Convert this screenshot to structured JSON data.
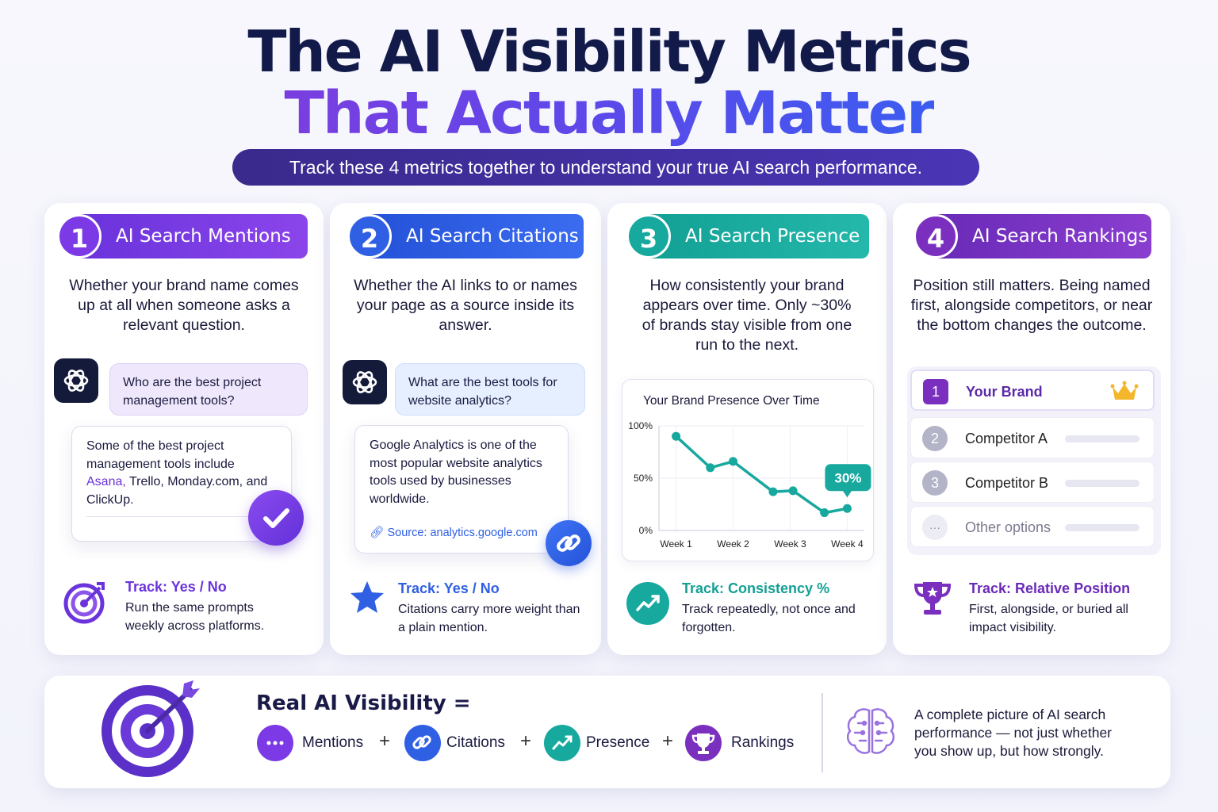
{
  "header": {
    "title_line1": "The AI Visibility Metrics",
    "title_line2": "That Actually Matter",
    "subtitle": "Track these 4 metrics together to understand your true AI search performance."
  },
  "cards": [
    {
      "number": "1",
      "label": "AI Search Mentions",
      "description": "Whether your brand name comes up at all when someone asks a relevant question.",
      "question": "Who are the best project management tools?",
      "answer_prefix": "Some of the best project management tools include ",
      "answer_highlight": "Asana,",
      "answer_rest": " Trello, Monday.com, and ClickUp.",
      "track_title": "Track: Yes / No",
      "track_desc": "Run the same prompts weekly across platforms.",
      "color": "#7c3ae6"
    },
    {
      "number": "2",
      "label": "AI Search Citations",
      "description": "Whether the AI links to or names your page as a source inside its answer.",
      "question": "What are the best tools for website analytics?",
      "answer": "Google Analytics is one of the most popular website analytics tools used by businesses worldwide.",
      "source_label": "Source:",
      "source_url": "analytics.google.com",
      "track_title": "Track: Yes / No",
      "track_desc": "Citations carry more weight than a plain mention.",
      "color": "#2f5fe3"
    },
    {
      "number": "3",
      "label": "AI Search Presence",
      "description": "How consistently your brand appears over time. Only ~30% of brands stay visible from one run to the next.",
      "track_title": "Track: Consistency %",
      "track_desc": "Track repeatedly, not once and forgotten.",
      "color": "#17a89e"
    },
    {
      "number": "4",
      "label": "AI Search Rankings",
      "description": "Position still matters. Being named first, alongside competitors, or near the bottom changes the outcome.",
      "ranks": [
        {
          "num": "1",
          "name": "Your Brand"
        },
        {
          "num": "2",
          "name": "Competitor A"
        },
        {
          "num": "3",
          "name": "Competitor B"
        },
        {
          "num": "···",
          "name": "Other options"
        }
      ],
      "track_title": "Track: Relative Position",
      "track_desc": "First, alongside, or buried all impact visibility.",
      "color": "#7b2fbf"
    }
  ],
  "chart_data": {
    "type": "line",
    "title": "Your Brand Presence Over Time",
    "x_ticks": [
      "Week 1",
      "Week 2",
      "Week 3",
      "Week 4"
    ],
    "y_ticks": [
      "100%",
      "50%",
      "0%"
    ],
    "ylim": [
      0,
      100
    ],
    "points": [
      {
        "x": 1,
        "y": 90
      },
      {
        "x": 1.6,
        "y": 60
      },
      {
        "x": 2,
        "y": 66
      },
      {
        "x": 2.7,
        "y": 37
      },
      {
        "x": 3.05,
        "y": 38
      },
      {
        "x": 3.6,
        "y": 17
      },
      {
        "x": 4,
        "y": 21
      }
    ],
    "callout_label": "30%",
    "line_color": "#17a89e"
  },
  "bottom": {
    "equation_title": "Real AI Visibility =",
    "terms": [
      "Mentions",
      "Citations",
      "Presence",
      "Rankings"
    ],
    "plus": "+",
    "summary": "A complete picture of AI search performance — not just whether you show up, but how strongly."
  }
}
